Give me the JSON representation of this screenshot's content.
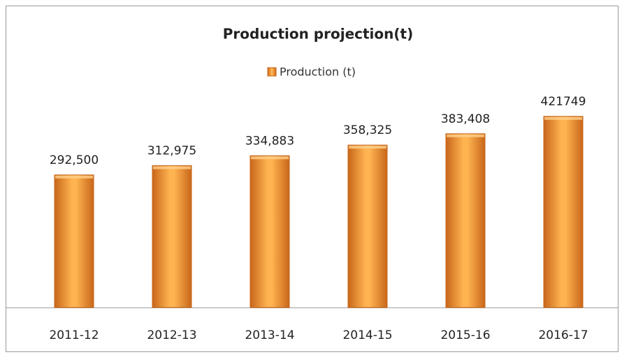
{
  "chart_data": {
    "type": "bar",
    "title": "Production projection(t)",
    "categories": [
      "2011-12",
      "2012-13",
      "2013-14",
      "2014-15",
      "2015-16",
      "2016-17"
    ],
    "series": [
      {
        "name": "Production (t)",
        "color": "#f39a2e",
        "values": [
          292500,
          312975,
          334883,
          358325,
          383408,
          421749
        ],
        "value_labels": [
          "292,500",
          "312,975",
          "334,883",
          "358,325",
          "383,408",
          "421749"
        ]
      }
    ],
    "ylim": [
      0,
      500000
    ],
    "legend": "top"
  }
}
